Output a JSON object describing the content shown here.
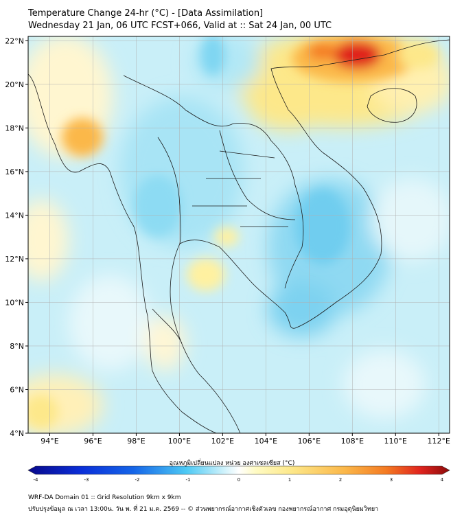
{
  "title": {
    "line1": "Temperature Change 24-hr (°C) - [Data Assimilation]",
    "line2": "Wednesday 21 Jan, 06 UTC FCST+066, Valid at :: Sat 24 Jan, 00 UTC"
  },
  "map": {
    "lon_range": [
      93,
      112.5
    ],
    "lat_range": [
      4,
      22.2
    ],
    "lon_ticks": [
      "94°E",
      "96°E",
      "98°E",
      "100°E",
      "102°E",
      "104°E",
      "106°E",
      "108°E",
      "110°E",
      "112°E"
    ],
    "lat_ticks": [
      "4°N",
      "6°N",
      "8°N",
      "10°N",
      "12°N",
      "14°N",
      "16°N",
      "18°N",
      "20°N",
      "22°N"
    ],
    "grid": true
  },
  "colorbar": {
    "label": "อุณหภูมิเปลี่ยนแปลง หน่วย องศาเซลเซียส (°C)",
    "ticks": [
      "-4",
      "-3",
      "-2",
      "-1",
      "0",
      "1",
      "2",
      "3",
      "4"
    ],
    "range": [
      -4,
      4
    ],
    "colors": [
      "#08088a",
      "#0a2ed8",
      "#1565e8",
      "#2a9af0",
      "#4dc9f4",
      "#a6e6f8",
      "#ffffff",
      "#fffbc4",
      "#fde88a",
      "#fbb84a",
      "#f47a22",
      "#e0241e",
      "#8c0a0a"
    ]
  },
  "footer": {
    "line1": "WRF-DA Domain 01 :: Grid Resolution 9km x 9km",
    "line2": "ปรับปรุงข้อมูล ณ เวลา 13:00น. วัน พ. ที่ 21 ม.ค. 2569 -- © ส่วนพยากรณ์อากาศเชิงตัวเลข กองพยากรณ์อากาศ กรมอุตุนิยมวิทยา"
  }
}
